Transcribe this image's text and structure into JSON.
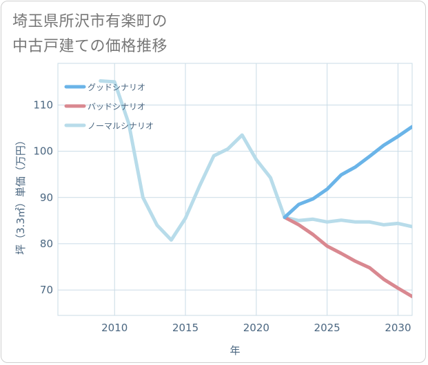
{
  "title": {
    "line1": "埼玉県所沢市有楽町の",
    "line2": "中古戸建ての価格推移"
  },
  "chart_data": {
    "type": "line",
    "xlabel": "年",
    "ylabel": "坪（3.3㎡）単価（万円）",
    "xlim": [
      2006,
      2031
    ],
    "ylim": [
      64.5,
      119
    ],
    "xticks": [
      2010,
      2015,
      2020,
      2025,
      2030
    ],
    "yticks": [
      70,
      80,
      90,
      100,
      110
    ],
    "grid": true,
    "legend_position": "top-left",
    "series": [
      {
        "name": "グッドシナリオ",
        "color": "#6ab4e8",
        "x": [
          2022,
          2023,
          2024,
          2025,
          2026,
          2027,
          2028,
          2029,
          2030,
          2031
        ],
        "y": [
          85.7,
          88.5,
          89.7,
          91.8,
          94.9,
          96.6,
          98.9,
          101.3,
          103.2,
          105.3
        ]
      },
      {
        "name": "バッドシナリオ",
        "color": "#d98890",
        "x": [
          2022,
          2023,
          2024,
          2025,
          2026,
          2027,
          2028,
          2029,
          2030,
          2031
        ],
        "y": [
          85.7,
          84.1,
          82.0,
          79.5,
          77.9,
          76.2,
          74.8,
          72.3,
          70.4,
          68.6
        ]
      },
      {
        "name": "ノーマルシナリオ",
        "color": "#b8dcea",
        "x": [
          2009,
          2010,
          2011,
          2012,
          2013,
          2014,
          2015,
          2016,
          2017,
          2018,
          2019,
          2020,
          2021,
          2022,
          2023,
          2024,
          2025,
          2026,
          2027,
          2028,
          2029,
          2030,
          2031
        ],
        "y": [
          115.2,
          115.0,
          106.0,
          90.0,
          84.0,
          80.8,
          85.5,
          92.5,
          99.0,
          100.5,
          103.5,
          98.2,
          94.3,
          85.7,
          85.0,
          85.3,
          84.7,
          85.1,
          84.7,
          84.7,
          84.1,
          84.4,
          83.7
        ]
      }
    ]
  }
}
